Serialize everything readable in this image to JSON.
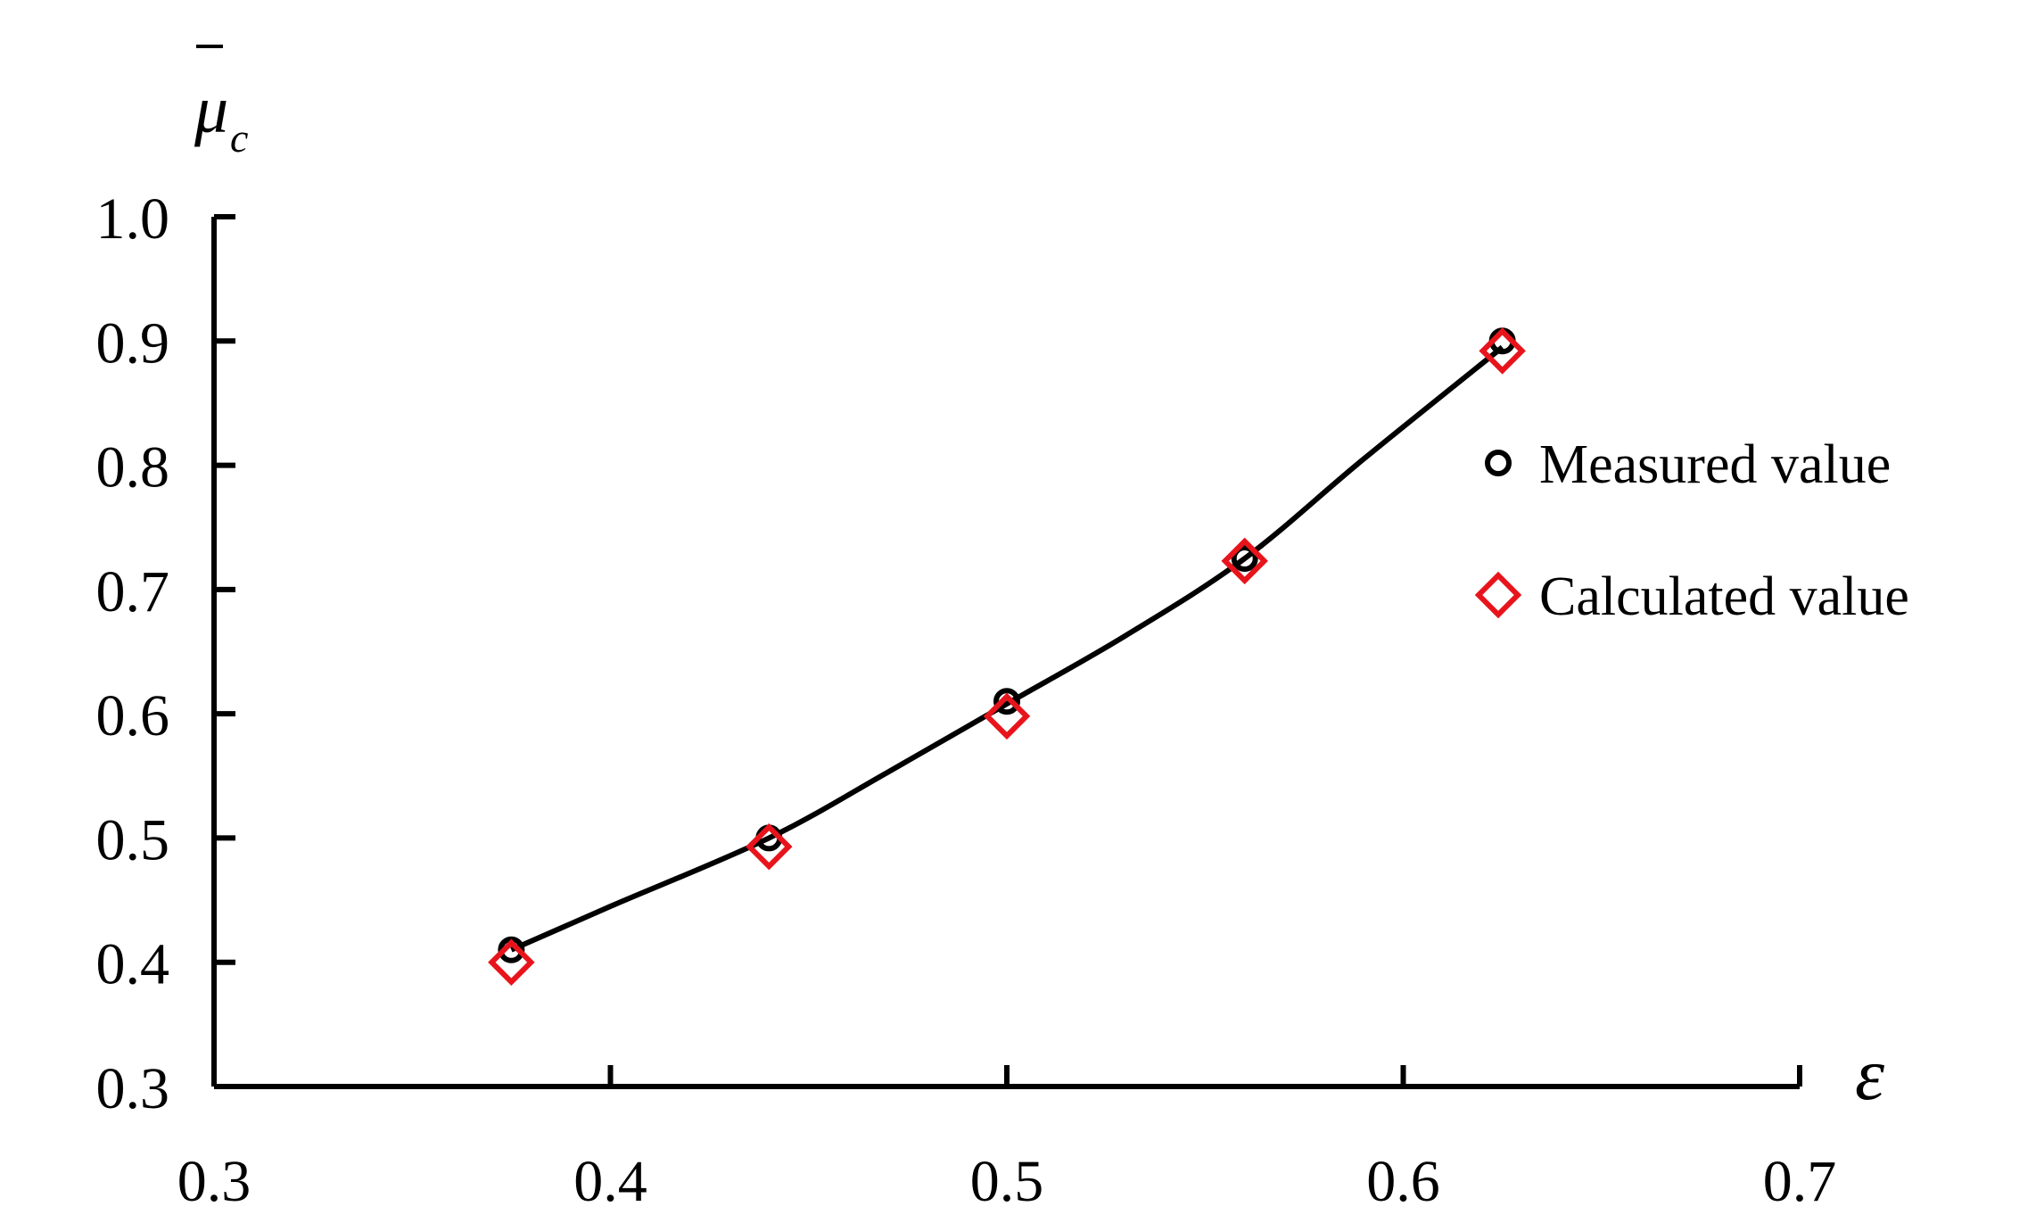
{
  "chart_data": {
    "type": "scatter",
    "xlabel": "ε",
    "ylabel": "μ",
    "ylabel_subscript": "c",
    "xlim": [
      0.3,
      0.7
    ],
    "ylim": [
      0.3,
      1.0
    ],
    "x_ticks": [
      "0.3",
      "0.4",
      "0.5",
      "0.6",
      "0.7"
    ],
    "y_ticks": [
      "0.3",
      "0.4",
      "0.5",
      "0.6",
      "0.7",
      "0.8",
      "0.9",
      "1.0"
    ],
    "grid": false,
    "legend_position": "right",
    "series": [
      {
        "name": "Measured value",
        "marker": "circle",
        "color": "#000000",
        "x": [
          0.375,
          0.44,
          0.5,
          0.56,
          0.625
        ],
        "y": [
          0.41,
          0.5,
          0.61,
          0.725,
          0.9
        ]
      },
      {
        "name": "Calculated value",
        "marker": "diamond",
        "color": "#e8141c",
        "x": [
          0.375,
          0.44,
          0.5,
          0.56,
          0.625
        ],
        "y": [
          0.4,
          0.493,
          0.598,
          0.723,
          0.892
        ]
      }
    ],
    "fit_curve": {
      "color": "#000000",
      "x": [
        0.375,
        0.4,
        0.44,
        0.47,
        0.5,
        0.53,
        0.56,
        0.59,
        0.625
      ],
      "y": [
        0.41,
        0.445,
        0.5,
        0.553,
        0.608,
        0.663,
        0.725,
        0.805,
        0.895
      ]
    }
  }
}
